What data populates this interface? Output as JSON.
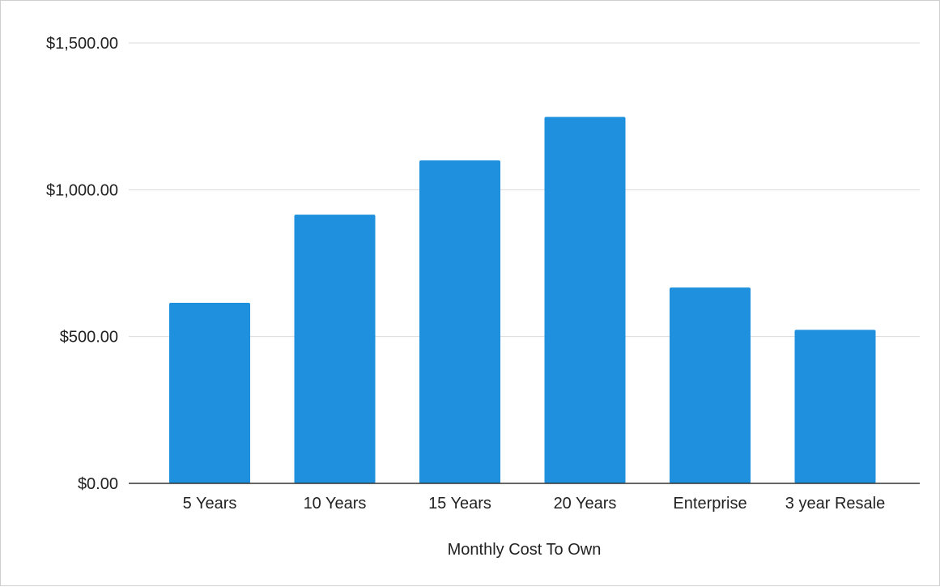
{
  "chart_data": {
    "type": "bar",
    "title": "",
    "xlabel": "Monthly Cost To Own",
    "ylabel": "",
    "categories": [
      "5 Years",
      "10 Years",
      "15 Years",
      "20 Years",
      "Enterprise",
      "3 year Resale"
    ],
    "values": [
      615,
      915,
      1100,
      1248,
      667,
      523
    ],
    "ylim": [
      0,
      1500
    ],
    "yticks": [
      0,
      500,
      1000,
      1500
    ],
    "ytick_labels": [
      "$0.00",
      "$500.00",
      "$1,000.00",
      "$1,500.00"
    ],
    "grid": true,
    "legend": "none",
    "colors": {
      "bar": "#1e90dd",
      "grid": "#d9d9d9",
      "axis": "#333333"
    }
  }
}
